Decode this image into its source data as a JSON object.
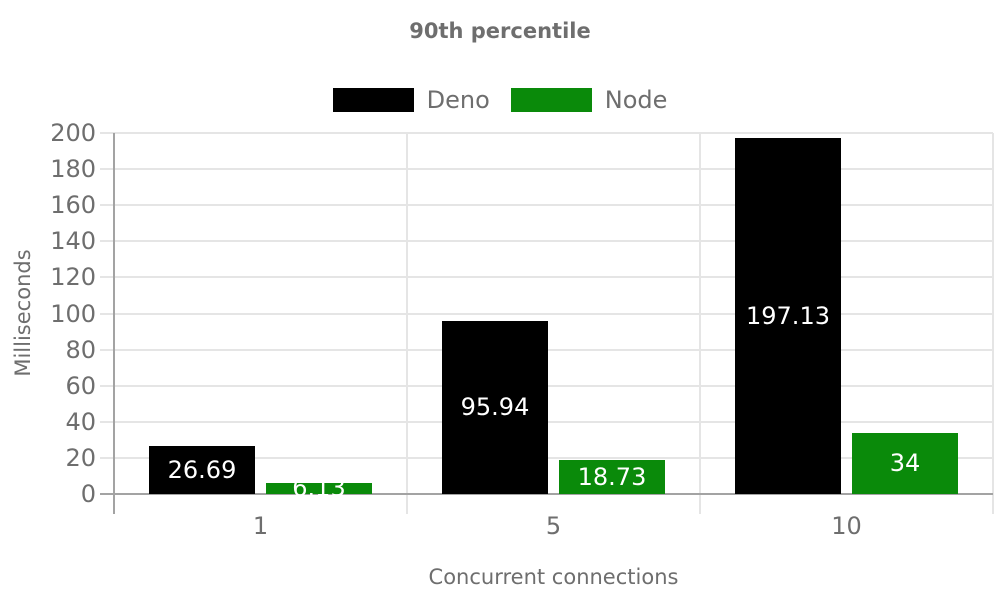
{
  "title": "90th percentile",
  "colors": {
    "background": "#ffffff",
    "text": "#6e6e6e",
    "grid": "#e5e5e5",
    "axis_line": "#a3a3a3",
    "bar_label": "#ffffff"
  },
  "chart_data": {
    "type": "bar",
    "title": "90th percentile",
    "xlabel": "Concurrent connections",
    "ylabel": "Milliseconds",
    "categories": [
      "1",
      "5",
      "10"
    ],
    "series": [
      {
        "name": "Deno",
        "color": "#000000",
        "values": [
          26.69,
          95.94,
          197.13
        ],
        "labels": [
          "26.69",
          "95.94",
          "197.13"
        ]
      },
      {
        "name": "Node",
        "color": "#0a8a0a",
        "values": [
          6.13,
          18.73,
          34
        ],
        "labels": [
          "6.13",
          "18.73",
          "34"
        ]
      }
    ],
    "ylim": [
      0,
      200
    ],
    "yticks": [
      0,
      20,
      40,
      60,
      80,
      100,
      120,
      140,
      160,
      180,
      200
    ],
    "grid": true,
    "legend_position": "top",
    "bar_value_labels_inside": true
  }
}
